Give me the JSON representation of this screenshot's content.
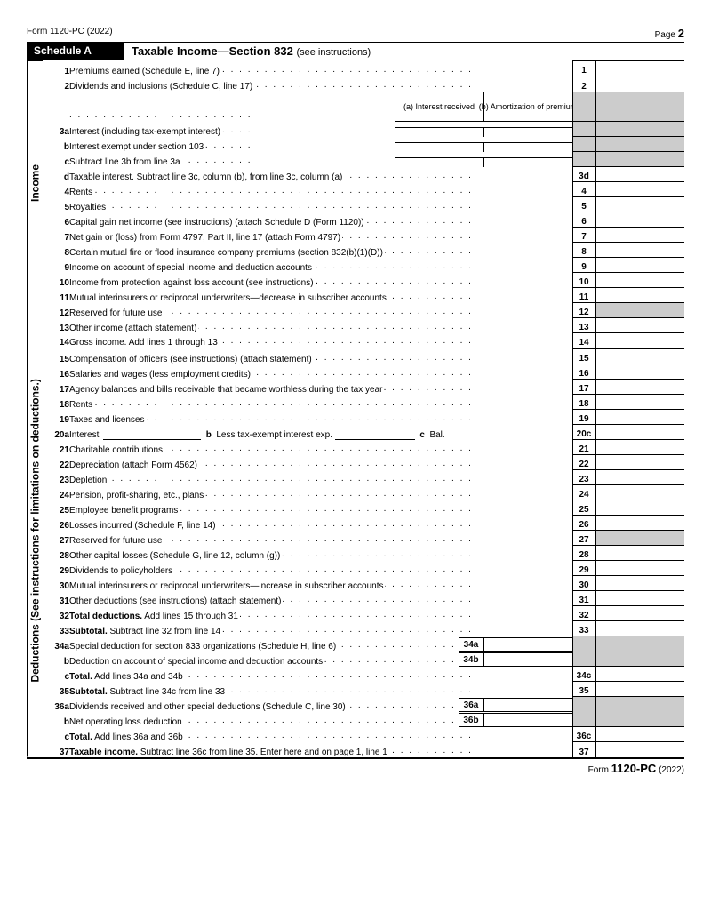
{
  "header": {
    "form": "Form 1120-PC (2022)",
    "page_label": "Page",
    "page_num": "2",
    "schedule": "Schedule A",
    "title": "Taxable Income—Section 832",
    "title_note": "(see instructions)"
  },
  "side": {
    "income": "Income",
    "deductions": "Deductions (See instructions for limitations on deductions.)"
  },
  "cols": {
    "a": "(a) Interest received",
    "b": "(b) Amortization of premium"
  },
  "inline": {
    "l20_b": "b",
    "l20_b_text": "Less tax-exempt interest exp.",
    "l20_c": "c",
    "l20_c_text": "Bal."
  },
  "lines": [
    {
      "n": "1",
      "t": "Premiums earned (Schedule E, line 7)",
      "box": "1"
    },
    {
      "n": "2",
      "t": "Dividends and inclusions (Schedule C, line 17)",
      "box": "2"
    },
    {
      "n": "3a",
      "t": "Interest (including tax-exempt interest)",
      "twocol": true
    },
    {
      "n": "b",
      "t": "Interest exempt under section 103",
      "twocol": true
    },
    {
      "n": "c",
      "t": "Subtract line 3b from line 3a",
      "twocol": true
    },
    {
      "n": "d",
      "t": "Taxable interest. Subtract line 3c, column (b), from line 3c, column (a)",
      "box": "3d"
    },
    {
      "n": "4",
      "t": "Rents",
      "box": "4"
    },
    {
      "n": "5",
      "t": "Royalties",
      "box": "5"
    },
    {
      "n": "6",
      "t": "Capital gain net income (see instructions) (attach Schedule D (Form 1120))",
      "box": "6"
    },
    {
      "n": "7",
      "t": "Net gain or (loss) from Form 4797, Part II, line 17 (attach Form 4797)",
      "box": "7"
    },
    {
      "n": "8",
      "t": "Certain mutual fire or flood insurance company premiums (section 832(b)(1)(D))",
      "box": "8"
    },
    {
      "n": "9",
      "t": "Income on account of special income and deduction accounts",
      "box": "9"
    },
    {
      "n": "10",
      "t": "Income from protection against loss account (see instructions)",
      "box": "10"
    },
    {
      "n": "11",
      "t": "Mutual interinsurers or reciprocal underwriters—decrease in subscriber accounts",
      "box": "11"
    },
    {
      "n": "12",
      "t": "Reserved for future use",
      "box": "12",
      "shaded": true
    },
    {
      "n": "13",
      "t": "Other income (attach statement)",
      "box": "13"
    },
    {
      "n": "14",
      "t": "Gross income. Add lines 1 through 13",
      "box": "14"
    },
    {
      "n": "15",
      "t": "Compensation of officers (see instructions) (attach statement)",
      "box": "15"
    },
    {
      "n": "16",
      "t": "Salaries and wages (less employment credits)",
      "box": "16"
    },
    {
      "n": "17",
      "t": "Agency balances and bills receivable that became worthless during the tax year",
      "box": "17"
    },
    {
      "n": "18",
      "t": "Rents",
      "box": "18"
    },
    {
      "n": "19",
      "t": "Taxes and licenses",
      "box": "19"
    },
    {
      "n": "20a",
      "t": "Interest",
      "box": "20c",
      "special": "20"
    },
    {
      "n": "21",
      "t": "Charitable contributions",
      "box": "21"
    },
    {
      "n": "22",
      "t": "Depreciation (attach Form 4562)",
      "box": "22"
    },
    {
      "n": "23",
      "t": "Depletion",
      "box": "23"
    },
    {
      "n": "24",
      "t": "Pension, profit-sharing, etc., plans",
      "box": "24"
    },
    {
      "n": "25",
      "t": "Employee benefit programs",
      "box": "25"
    },
    {
      "n": "26",
      "t": "Losses incurred (Schedule F, line 14)",
      "box": "26"
    },
    {
      "n": "27",
      "t": "Reserved for future use",
      "box": "27",
      "shaded": true
    },
    {
      "n": "28",
      "t": "Other capital losses (Schedule G, line 12, column (g))",
      "box": "28"
    },
    {
      "n": "29",
      "t": "Dividends to policyholders",
      "box": "29"
    },
    {
      "n": "30",
      "t": "Mutual interinsurers or reciprocal underwriters—increase in subscriber accounts",
      "box": "30"
    },
    {
      "n": "31",
      "t": "Other deductions (see instructions) (attach statement)",
      "box": "31"
    },
    {
      "n": "32",
      "t": "<b>Total deductions.</b> Add lines 15 through 31",
      "box": "32"
    },
    {
      "n": "33",
      "t": "<b>Subtotal.</b> Subtract line 32 from line 14",
      "box": "33"
    },
    {
      "n": "34a",
      "t": "Special deduction for section 833 organizations (Schedule H, line 6)",
      "inset": "34a",
      "shadedend": true
    },
    {
      "n": "b",
      "t": "Deduction on account of special income and deduction accounts",
      "inset": "34b",
      "shadedend": true
    },
    {
      "n": "c",
      "t": "<b>Total.</b> Add lines 34a and 34b",
      "box": "34c"
    },
    {
      "n": "35",
      "t": "<b>Subtotal.</b> Subtract line 34c from line 33",
      "box": "35"
    },
    {
      "n": "36a",
      "t": "Dividends received and other special deductions (Schedule C, line 30)",
      "inset": "36a",
      "shadedend": true
    },
    {
      "n": "b",
      "t": "Net operating loss deduction",
      "inset": "36b",
      "shadedend": true
    },
    {
      "n": "c",
      "t": "<b>Total.</b> Add lines 36a and 36b",
      "box": "36c"
    },
    {
      "n": "37",
      "t": "<b>Taxable income.</b> Subtract line 36c from line 35. Enter here and on page 1, line 1",
      "box": "37"
    }
  ],
  "footer": {
    "form_label": "Form",
    "form_num": "1120-PC",
    "year": "(2022)"
  }
}
